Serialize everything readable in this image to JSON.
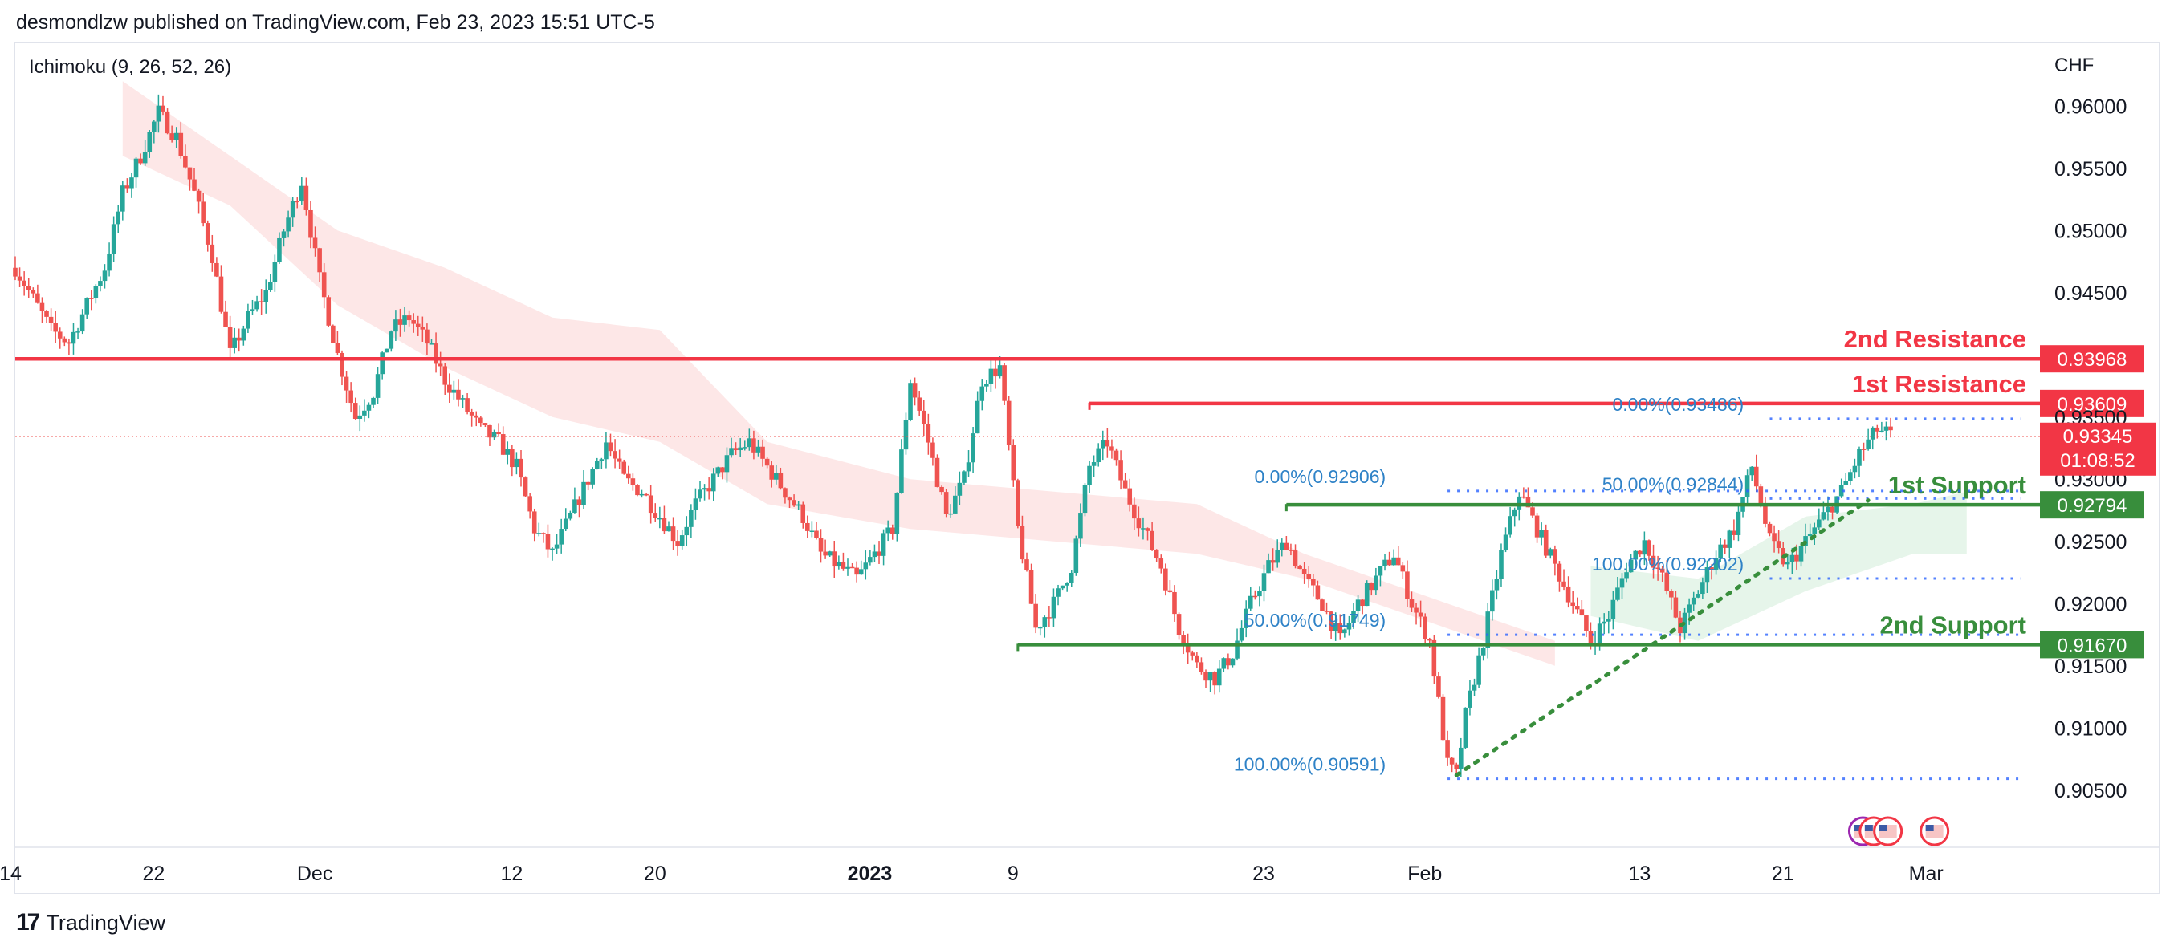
{
  "header": {
    "publisher": "desmondlzw published on TradingView.com, Feb 23, 2023 15:51 UTC-5"
  },
  "footer": {
    "brand": "TradingView"
  },
  "colors": {
    "up": "#26a69a",
    "down": "#ef5350",
    "resistance": "#f23645",
    "support": "#388e3c",
    "fib": "#2962ff",
    "fib_text": "#2e82c7",
    "cloud_bear": "#fde3e3",
    "cloud_bull": "#e2f3e6"
  },
  "chart_data": {
    "type": "candlestick",
    "indicator": "Ichimoku (9, 26, 52, 26)",
    "currency": "CHF",
    "y_ticks": [
      "0.96000",
      "0.95500",
      "0.95000",
      "0.94500",
      "0.93500",
      "0.93000",
      "0.92500",
      "0.92000",
      "0.91500",
      "0.91000",
      "0.90500"
    ],
    "y_tick_values": [
      0.96,
      0.955,
      0.95,
      0.945,
      0.935,
      0.93,
      0.925,
      0.92,
      0.915,
      0.91,
      0.905
    ],
    "ylim": [
      0.9035,
      0.9635
    ],
    "x_ticks": [
      {
        "label": "14",
        "day": 0
      },
      {
        "label": "22",
        "day": 8
      },
      {
        "label": "Dec",
        "day": 17
      },
      {
        "label": "12",
        "day": 28
      },
      {
        "label": "20",
        "day": 36
      },
      {
        "label": "2023",
        "day": 48,
        "bold": true
      },
      {
        "label": "9",
        "day": 56
      },
      {
        "label": "23",
        "day": 70
      },
      {
        "label": "Feb",
        "day": 79
      },
      {
        "label": "13",
        "day": 91
      },
      {
        "label": "21",
        "day": 99
      },
      {
        "label": "Mar",
        "day": 107
      }
    ],
    "x_range_days": [
      0,
      113
    ],
    "levels": [
      {
        "name": "2nd Resistance",
        "value": 0.93968,
        "label": "0.93968",
        "kind": "resistance",
        "start_day": 0
      },
      {
        "name": "1st Resistance",
        "value": 0.93609,
        "label": "0.93609",
        "kind": "resistance",
        "start_day": 60
      },
      {
        "name": "1st Support",
        "value": 0.92794,
        "label": "0.92794",
        "kind": "support",
        "start_day": 71
      },
      {
        "name": "2nd Support",
        "value": 0.9167,
        "label": "0.91670",
        "kind": "support",
        "start_day": 56
      }
    ],
    "current_price": {
      "value": 0.93345,
      "label": "0.93345",
      "countdown": "01:08:52"
    },
    "fib_labels": [
      {
        "text": "0.00%(0.93486)",
        "value": 0.93486,
        "day": 97
      },
      {
        "text": "0.00%(0.92906)",
        "value": 0.92906,
        "day": 77
      },
      {
        "text": "50.00%(0.92844)",
        "value": 0.92844,
        "day": 97
      },
      {
        "text": "100.00%(0.92202)",
        "value": 0.92202,
        "day": 97
      },
      {
        "text": "50.00%(0.91749)",
        "value": 0.91749,
        "day": 77
      },
      {
        "text": "100.00%(0.90591)",
        "value": 0.90591,
        "day": 77
      }
    ],
    "fib_lines": [
      {
        "value": 0.93486,
        "from_day": 98,
        "to_day": 112
      },
      {
        "value": 0.92844,
        "from_day": 98,
        "to_day": 112
      },
      {
        "value": 0.92202,
        "from_day": 98,
        "to_day": 112
      },
      {
        "value": 0.92906,
        "from_day": 80,
        "to_day": 112
      },
      {
        "value": 0.91749,
        "from_day": 80,
        "to_day": 112
      },
      {
        "value": 0.90591,
        "from_day": 80,
        "to_day": 112
      }
    ],
    "trendline": {
      "from": [
        80.5,
        0.9062
      ],
      "to": [
        103.5,
        0.9283
      ]
    },
    "price_path": [
      [
        0,
        0.947
      ],
      [
        2,
        0.942
      ],
      [
        3,
        0.941
      ],
      [
        5,
        0.947
      ],
      [
        6,
        0.953
      ],
      [
        7,
        0.956
      ],
      [
        8,
        0.9595
      ],
      [
        9,
        0.9575
      ],
      [
        10,
        0.953
      ],
      [
        11,
        0.948
      ],
      [
        12,
        0.94
      ],
      [
        13,
        0.943
      ],
      [
        14,
        0.945
      ],
      [
        15,
        0.95
      ],
      [
        16,
        0.954
      ],
      [
        17,
        0.946
      ],
      [
        18,
        0.94
      ],
      [
        19,
        0.935
      ],
      [
        20,
        0.937
      ],
      [
        21,
        0.942
      ],
      [
        22,
        0.943
      ],
      [
        23,
        0.941
      ],
      [
        24,
        0.938
      ],
      [
        25,
        0.936
      ],
      [
        26,
        0.934
      ],
      [
        27,
        0.933
      ],
      [
        28,
        0.931
      ],
      [
        29,
        0.926
      ],
      [
        30,
        0.924
      ],
      [
        31,
        0.927
      ],
      [
        32,
        0.93
      ],
      [
        33,
        0.933
      ],
      [
        34,
        0.93
      ],
      [
        35,
        0.929
      ],
      [
        36,
        0.927
      ],
      [
        37,
        0.925
      ],
      [
        38,
        0.928
      ],
      [
        39,
        0.93
      ],
      [
        40,
        0.932
      ],
      [
        41,
        0.933
      ],
      [
        42,
        0.931
      ],
      [
        43,
        0.929
      ],
      [
        44,
        0.927
      ],
      [
        45,
        0.924
      ],
      [
        46,
        0.923
      ],
      [
        47,
        0.922
      ],
      [
        48,
        0.924
      ],
      [
        49,
        0.926
      ],
      [
        50,
        0.938
      ],
      [
        51,
        0.933
      ],
      [
        52,
        0.927
      ],
      [
        53,
        0.93
      ],
      [
        54,
        0.938
      ],
      [
        55,
        0.939
      ],
      [
        56,
        0.926
      ],
      [
        57,
        0.918
      ],
      [
        58,
        0.92
      ],
      [
        59,
        0.923
      ],
      [
        60,
        0.931
      ],
      [
        61,
        0.933
      ],
      [
        62,
        0.929
      ],
      [
        63,
        0.926
      ],
      [
        64,
        0.923
      ],
      [
        65,
        0.918
      ],
      [
        66,
        0.915
      ],
      [
        67,
        0.914
      ],
      [
        68,
        0.916
      ],
      [
        69,
        0.92
      ],
      [
        70,
        0.923
      ],
      [
        71,
        0.925
      ],
      [
        72,
        0.922
      ],
      [
        73,
        0.92
      ],
      [
        74,
        0.917
      ],
      [
        75,
        0.92
      ],
      [
        76,
        0.922
      ],
      [
        77,
        0.924
      ],
      [
        78,
        0.92
      ],
      [
        79,
        0.917
      ],
      [
        80,
        0.907
      ],
      [
        80.5,
        0.9062
      ],
      [
        81,
        0.911
      ],
      [
        82,
        0.917
      ],
      [
        83,
        0.924
      ],
      [
        84,
        0.929
      ],
      [
        85,
        0.926
      ],
      [
        86,
        0.923
      ],
      [
        87,
        0.92
      ],
      [
        88,
        0.917
      ],
      [
        89,
        0.919
      ],
      [
        90,
        0.923
      ],
      [
        91,
        0.925
      ],
      [
        92,
        0.922
      ],
      [
        93,
        0.918
      ],
      [
        94,
        0.921
      ],
      [
        95,
        0.924
      ],
      [
        96,
        0.926
      ],
      [
        97,
        0.931
      ],
      [
        98,
        0.925
      ],
      [
        99,
        0.923
      ],
      [
        100,
        0.925
      ],
      [
        101,
        0.927
      ],
      [
        102,
        0.929
      ],
      [
        103,
        0.932
      ],
      [
        104,
        0.934
      ],
      [
        104.8,
        0.9335
      ]
    ],
    "kumo_bear": [
      [
        [
          6,
          0.962
        ],
        [
          12,
          0.956
        ],
        [
          18,
          0.95
        ],
        [
          24,
          0.947
        ],
        [
          30,
          0.943
        ],
        [
          36,
          0.942
        ],
        [
          42,
          0.933
        ],
        [
          50,
          0.93
        ],
        [
          58,
          0.929
        ],
        [
          66,
          0.928
        ],
        [
          72,
          0.924
        ],
        [
          80,
          0.92
        ],
        [
          86,
          0.917
        ]
      ],
      [
        [
          6,
          0.956
        ],
        [
          12,
          0.952
        ],
        [
          18,
          0.944
        ],
        [
          24,
          0.939
        ],
        [
          30,
          0.935
        ],
        [
          36,
          0.933
        ],
        [
          42,
          0.928
        ],
        [
          50,
          0.926
        ],
        [
          58,
          0.925
        ],
        [
          66,
          0.924
        ],
        [
          72,
          0.922
        ],
        [
          80,
          0.918
        ],
        [
          86,
          0.915
        ]
      ]
    ],
    "kumo_bull": [
      [
        [
          88,
          0.923
        ],
        [
          94,
          0.922
        ],
        [
          100,
          0.927
        ],
        [
          106,
          0.928
        ],
        [
          109,
          0.929
        ]
      ],
      [
        [
          88,
          0.919
        ],
        [
          94,
          0.917
        ],
        [
          100,
          0.921
        ],
        [
          106,
          0.924
        ],
        [
          109,
          0.924
        ]
      ]
    ],
    "event_icons": 4
  }
}
